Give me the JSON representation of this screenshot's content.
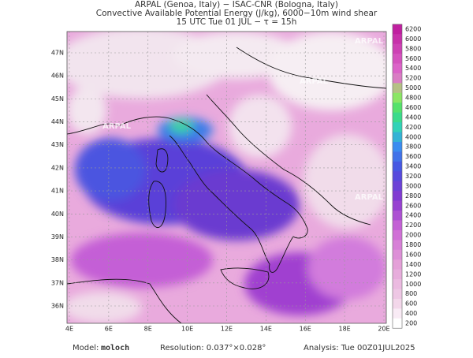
{
  "header": {
    "lines": [
      "ARPAL (Genoa, Italy)  −  ISAC-CNR (Bologna, Italy)",
      "Convective Available Potential Energy (J/kg), 6000−10m wind shear",
      "15 UTC Tue 01 JUL  −  τ = 15h"
    ]
  },
  "map": {
    "lat_labels": [
      "47N",
      "46N",
      "45N",
      "44N",
      "43N",
      "42N",
      "41N",
      "40N",
      "39N",
      "38N",
      "37N",
      "36N"
    ],
    "lon_labels": [
      "4E",
      "6E",
      "8E",
      "10E",
      "12E",
      "14E",
      "16E",
      "18E",
      "20E"
    ],
    "watermark": "ARPAL"
  },
  "colorbar": {
    "labels": [
      6200,
      6000,
      5800,
      5600,
      5400,
      5200,
      5000,
      4800,
      4600,
      4400,
      4200,
      4000,
      3800,
      3600,
      3400,
      3200,
      3000,
      2800,
      2600,
      2400,
      2200,
      2000,
      1800,
      1600,
      1400,
      1200,
      1000,
      800,
      600,
      400,
      200
    ]
  },
  "footer": {
    "model_label": "Model:",
    "model": "moloch",
    "resolution": "Resolution: 0.037°×0.028°",
    "analysis": "Analysis: Tue 00Z01JUL2025"
  }
}
